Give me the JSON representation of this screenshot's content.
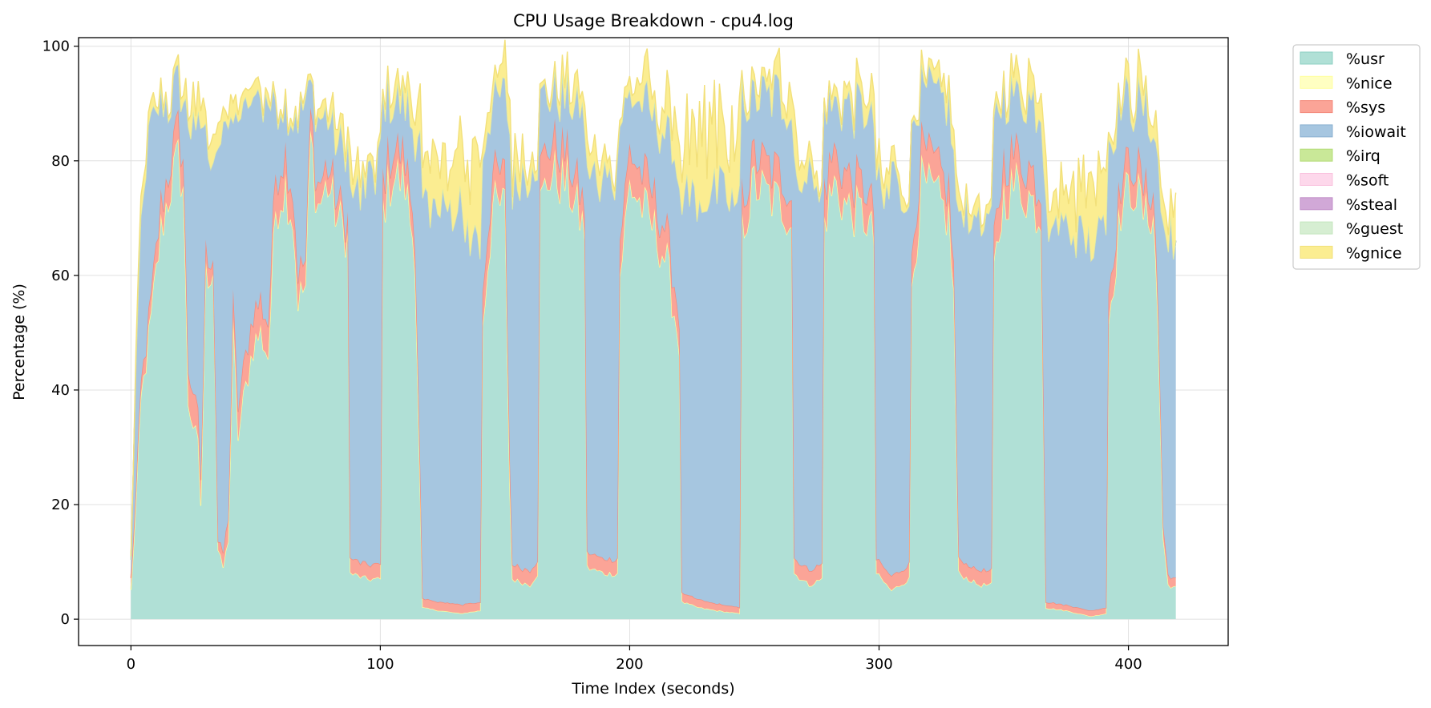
{
  "chart_data": {
    "type": "area",
    "stacked": true,
    "title": "CPU Usage Breakdown - cpu4.log",
    "xlabel": "Time Index (seconds)",
    "ylabel": "Percentage (%)",
    "xlim": [
      -21,
      440
    ],
    "ylim": [
      -4.6,
      101.5
    ],
    "xticks": [
      0,
      100,
      200,
      300,
      400
    ],
    "yticks": [
      0,
      20,
      40,
      60,
      80,
      100
    ],
    "grid": true,
    "legend_position": "outside-top-right",
    "sample_count": 420,
    "series": [
      {
        "name": "%usr",
        "color": "#b0e0d6",
        "line": "#8dcfc3",
        "profile": [
          [
            0,
            5
          ],
          [
            2,
            20
          ],
          [
            4,
            38
          ],
          [
            8,
            52
          ],
          [
            12,
            68
          ],
          [
            16,
            76
          ],
          [
            19,
            80
          ],
          [
            21,
            76
          ],
          [
            23,
            38
          ],
          [
            25,
            34
          ],
          [
            27,
            30
          ],
          [
            28,
            20
          ],
          [
            30,
            60
          ],
          [
            33,
            62
          ],
          [
            35,
            12
          ],
          [
            37,
            9
          ],
          [
            39,
            14
          ],
          [
            41,
            50
          ],
          [
            43,
            32
          ],
          [
            45,
            38
          ],
          [
            49,
            48
          ],
          [
            52,
            50
          ],
          [
            55,
            46
          ],
          [
            58,
            72
          ],
          [
            62,
            76
          ],
          [
            65,
            70
          ],
          [
            67,
            56
          ],
          [
            70,
            58
          ],
          [
            72,
            84
          ],
          [
            75,
            72
          ],
          [
            79,
            76
          ],
          [
            83,
            70
          ],
          [
            87,
            67
          ],
          [
            88,
            8
          ],
          [
            95,
            7
          ],
          [
            100,
            7
          ],
          [
            101,
            72
          ],
          [
            105,
            78
          ],
          [
            110,
            76
          ],
          [
            114,
            64
          ],
          [
            116,
            22
          ],
          [
            117,
            2
          ],
          [
            124,
            1.5
          ],
          [
            132,
            1
          ],
          [
            140,
            1.5
          ],
          [
            141,
            52
          ],
          [
            145,
            72
          ],
          [
            150,
            72
          ],
          [
            152,
            22
          ],
          [
            153,
            7
          ],
          [
            160,
            6
          ],
          [
            163,
            8
          ],
          [
            164,
            72
          ],
          [
            168,
            78
          ],
          [
            175,
            76
          ],
          [
            182,
            68
          ],
          [
            183,
            9
          ],
          [
            190,
            8
          ],
          [
            195,
            8
          ],
          [
            196,
            60
          ],
          [
            200,
            76
          ],
          [
            205,
            72
          ],
          [
            210,
            68
          ],
          [
            215,
            62
          ],
          [
            220,
            48
          ],
          [
            221,
            3
          ],
          [
            228,
            2
          ],
          [
            235,
            1.5
          ],
          [
            244,
            1
          ],
          [
            245,
            68
          ],
          [
            250,
            76
          ],
          [
            255,
            74
          ],
          [
            262,
            72
          ],
          [
            265,
            70
          ],
          [
            266,
            8
          ],
          [
            272,
            6
          ],
          [
            277,
            7
          ],
          [
            278,
            70
          ],
          [
            282,
            76
          ],
          [
            287,
            72
          ],
          [
            295,
            70
          ],
          [
            298,
            66
          ],
          [
            299,
            8
          ],
          [
            305,
            5
          ],
          [
            312,
            7
          ],
          [
            313,
            58
          ],
          [
            317,
            76
          ],
          [
            322,
            74
          ],
          [
            328,
            70
          ],
          [
            330,
            56
          ],
          [
            332,
            8
          ],
          [
            340,
            6
          ],
          [
            345,
            6
          ],
          [
            346,
            60
          ],
          [
            350,
            74
          ],
          [
            355,
            76
          ],
          [
            360,
            74
          ],
          [
            365,
            70
          ],
          [
            367,
            2
          ],
          [
            375,
            1.5
          ],
          [
            385,
            0.5
          ],
          [
            391,
            1
          ],
          [
            392,
            52
          ],
          [
            397,
            72
          ],
          [
            402,
            76
          ],
          [
            407,
            70
          ],
          [
            410,
            72
          ],
          [
            412,
            50
          ],
          [
            414,
            14
          ],
          [
            416,
            6
          ],
          [
            419,
            5.5
          ]
        ]
      },
      {
        "name": "%nice",
        "color": "#ffffc2",
        "line": "#ffffa0",
        "value": 0
      },
      {
        "name": "%sys",
        "color": "#fba497",
        "line": "#f48a7c",
        "profile": [
          [
            0,
            2
          ],
          [
            12,
            4
          ],
          [
            21,
            5
          ],
          [
            25,
            6
          ],
          [
            35,
            1.5
          ],
          [
            41,
            5
          ],
          [
            58,
            6
          ],
          [
            67,
            5
          ],
          [
            72,
            4
          ],
          [
            88,
            2.5
          ],
          [
            100,
            2.5
          ],
          [
            101,
            5
          ],
          [
            116,
            4
          ],
          [
            117,
            1.5
          ],
          [
            140,
            1.5
          ],
          [
            141,
            6
          ],
          [
            152,
            5
          ],
          [
            153,
            2.5
          ],
          [
            163,
            2.5
          ],
          [
            164,
            6
          ],
          [
            182,
            4
          ],
          [
            183,
            2.5
          ],
          [
            195,
            2.5
          ],
          [
            196,
            6
          ],
          [
            220,
            5
          ],
          [
            221,
            1.5
          ],
          [
            244,
            1
          ],
          [
            245,
            5
          ],
          [
            265,
            5
          ],
          [
            266,
            2.5
          ],
          [
            277,
            2.5
          ],
          [
            278,
            6
          ],
          [
            298,
            5
          ],
          [
            299,
            2.5
          ],
          [
            312,
            2.5
          ],
          [
            313,
            6
          ],
          [
            330,
            5
          ],
          [
            332,
            2.5
          ],
          [
            345,
            2.5
          ],
          [
            346,
            6
          ],
          [
            365,
            5
          ],
          [
            367,
            1
          ],
          [
            391,
            1
          ],
          [
            392,
            5
          ],
          [
            412,
            4
          ],
          [
            414,
            2
          ],
          [
            419,
            1.5
          ]
        ]
      },
      {
        "name": "%iowait",
        "color": "#a6c6e0",
        "line": "#8ab0d0",
        "profile": [
          [
            0,
            3
          ],
          [
            2,
            20
          ],
          [
            4,
            30
          ],
          [
            8,
            30
          ],
          [
            12,
            18
          ],
          [
            16,
            10
          ],
          [
            19,
            8
          ],
          [
            21,
            10
          ],
          [
            23,
            45
          ],
          [
            27,
            50
          ],
          [
            28,
            60
          ],
          [
            30,
            20
          ],
          [
            33,
            18
          ],
          [
            35,
            72
          ],
          [
            37,
            75
          ],
          [
            39,
            70
          ],
          [
            41,
            30
          ],
          [
            43,
            50
          ],
          [
            45,
            48
          ],
          [
            49,
            38
          ],
          [
            52,
            36
          ],
          [
            55,
            38
          ],
          [
            58,
            12
          ],
          [
            62,
            8
          ],
          [
            65,
            12
          ],
          [
            67,
            28
          ],
          [
            70,
            28
          ],
          [
            72,
            5
          ],
          [
            75,
            12
          ],
          [
            79,
            8
          ],
          [
            83,
            10
          ],
          [
            87,
            12
          ],
          [
            88,
            66
          ],
          [
            95,
            66
          ],
          [
            100,
            70
          ],
          [
            101,
            14
          ],
          [
            105,
            8
          ],
          [
            110,
            10
          ],
          [
            114,
            16
          ],
          [
            116,
            58
          ],
          [
            117,
            70
          ],
          [
            124,
            68
          ],
          [
            132,
            70
          ],
          [
            140,
            60
          ],
          [
            141,
            24
          ],
          [
            145,
            12
          ],
          [
            150,
            14
          ],
          [
            152,
            58
          ],
          [
            153,
            66
          ],
          [
            160,
            68
          ],
          [
            163,
            66
          ],
          [
            164,
            12
          ],
          [
            168,
            8
          ],
          [
            175,
            10
          ],
          [
            182,
            16
          ],
          [
            183,
            64
          ],
          [
            190,
            66
          ],
          [
            195,
            66
          ],
          [
            196,
            20
          ],
          [
            200,
            10
          ],
          [
            205,
            12
          ],
          [
            210,
            14
          ],
          [
            215,
            18
          ],
          [
            220,
            24
          ],
          [
            221,
            70
          ],
          [
            228,
            70
          ],
          [
            235,
            72
          ],
          [
            244,
            70
          ],
          [
            245,
            18
          ],
          [
            250,
            10
          ],
          [
            255,
            12
          ],
          [
            262,
            14
          ],
          [
            265,
            14
          ],
          [
            266,
            66
          ],
          [
            272,
            68
          ],
          [
            277,
            66
          ],
          [
            278,
            14
          ],
          [
            282,
            8
          ],
          [
            287,
            12
          ],
          [
            295,
            14
          ],
          [
            298,
            15
          ],
          [
            299,
            66
          ],
          [
            305,
            68
          ],
          [
            312,
            66
          ],
          [
            313,
            24
          ],
          [
            317,
            10
          ],
          [
            322,
            12
          ],
          [
            328,
            14
          ],
          [
            330,
            20
          ],
          [
            332,
            60
          ],
          [
            340,
            62
          ],
          [
            345,
            62
          ],
          [
            346,
            20
          ],
          [
            350,
            12
          ],
          [
            355,
            10
          ],
          [
            360,
            12
          ],
          [
            365,
            14
          ],
          [
            367,
            66
          ],
          [
            375,
            66
          ],
          [
            385,
            64
          ],
          [
            391,
            66
          ],
          [
            392,
            26
          ],
          [
            397,
            14
          ],
          [
            402,
            10
          ],
          [
            407,
            14
          ],
          [
            410,
            10
          ],
          [
            412,
            26
          ],
          [
            414,
            52
          ],
          [
            416,
            60
          ],
          [
            419,
            59
          ]
        ]
      },
      {
        "name": "%irq",
        "color": "#c9e898",
        "line": "#b3dc76",
        "value": 0
      },
      {
        "name": "%soft",
        "color": "#fdd8eb",
        "line": "#f9c2de",
        "value": 0
      },
      {
        "name": "%steal",
        "color": "#d1a8d7",
        "line": "#c18fc8",
        "value": 0
      },
      {
        "name": "%guest",
        "color": "#d6eed2",
        "line": "#c4e6be",
        "value": 0
      },
      {
        "name": "%gnice",
        "color": "#fbed91",
        "line": "#f2e07a",
        "profile": [
          [
            0,
            1
          ],
          [
            4,
            3
          ],
          [
            16,
            1
          ],
          [
            28,
            4
          ],
          [
            35,
            3
          ],
          [
            58,
            1
          ],
          [
            72,
            1
          ],
          [
            88,
            4
          ],
          [
            101,
            1
          ],
          [
            117,
            6
          ],
          [
            132,
            10
          ],
          [
            140,
            12
          ],
          [
            141,
            2
          ],
          [
            153,
            5
          ],
          [
            164,
            1
          ],
          [
            183,
            4
          ],
          [
            196,
            1
          ],
          [
            221,
            8
          ],
          [
            230,
            14
          ],
          [
            244,
            10
          ],
          [
            245,
            1
          ],
          [
            266,
            5
          ],
          [
            278,
            1
          ],
          [
            299,
            4
          ],
          [
            313,
            1
          ],
          [
            332,
            3
          ],
          [
            346,
            1
          ],
          [
            367,
            5
          ],
          [
            385,
            10
          ],
          [
            391,
            8
          ],
          [
            392,
            2
          ],
          [
            412,
            4
          ],
          [
            419,
            6
          ]
        ]
      }
    ]
  }
}
